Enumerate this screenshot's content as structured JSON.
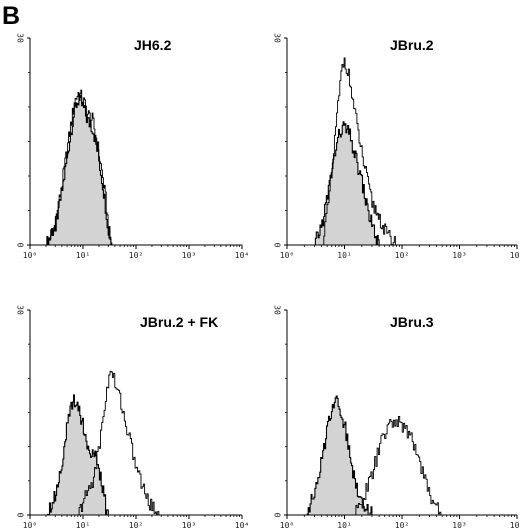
{
  "figure_label": "B",
  "colors": {
    "control_fill": "#d3d3d3",
    "outline": "#000000",
    "axis": "#000000"
  },
  "chart_data": [
    {
      "type": "area",
      "title": "JH6.2",
      "x_scale": "log",
      "xlim": [
        1,
        10000
      ],
      "ylim": [
        0,
        30
      ],
      "x_tick_labels": [
        "10⁰",
        "10¹",
        "10²",
        "10³",
        "10⁴"
      ],
      "y_tick_labels": [
        "0",
        "30"
      ],
      "grid": false,
      "series": [
        {
          "style": "filled-grey",
          "x": [
            2,
            3,
            4,
            5,
            6,
            7,
            8,
            10,
            12,
            15,
            18,
            20,
            23,
            27,
            30,
            35
          ],
          "y": [
            0,
            3,
            8,
            13,
            17,
            20,
            21,
            20,
            18,
            17,
            14,
            12,
            9,
            5,
            2,
            0
          ]
        },
        {
          "style": "outline",
          "x": [
            2,
            3,
            4,
            5,
            6,
            7,
            8,
            10,
            12,
            15,
            18,
            20,
            23,
            27,
            30,
            35
          ],
          "y": [
            0,
            3,
            9,
            14,
            18,
            21,
            22,
            21,
            19,
            18,
            15,
            13,
            10,
            6,
            2,
            0
          ]
        }
      ]
    },
    {
      "type": "area",
      "title": "JBru.2",
      "x_scale": "log",
      "xlim": [
        1,
        10000
      ],
      "ylim": [
        0,
        30
      ],
      "x_tick_labels": [
        "10⁰",
        "10¹",
        "10²",
        "10³",
        "10⁴"
      ],
      "y_tick_labels": [
        "0",
        "30"
      ],
      "grid": false,
      "series": [
        {
          "style": "filled-grey",
          "x": [
            3,
            4,
            5,
            6,
            7,
            8,
            9,
            10,
            12,
            15,
            20,
            25,
            30,
            35,
            40
          ],
          "y": [
            0,
            3,
            7,
            11,
            14,
            16,
            17,
            17,
            16,
            13,
            9,
            5,
            3,
            1,
            0
          ]
        },
        {
          "style": "outline",
          "x": [
            4,
            5,
            6,
            7,
            8,
            9,
            10,
            12,
            15,
            20,
            25,
            30,
            40,
            50,
            60,
            80
          ],
          "y": [
            0,
            5,
            11,
            17,
            22,
            26,
            27,
            24,
            19,
            13,
            9,
            6,
            4,
            2,
            1,
            0
          ]
        }
      ]
    },
    {
      "type": "area",
      "title": "JBru.2 + FK",
      "x_scale": "log",
      "xlim": [
        1,
        10000
      ],
      "ylim": [
        0,
        30
      ],
      "x_tick_labels": [
        "10⁰",
        "10¹",
        "10²",
        "10³",
        "10⁴"
      ],
      "y_tick_labels": [
        "0",
        "30"
      ],
      "grid": false,
      "series": [
        {
          "style": "filled-grey",
          "x": [
            2,
            3,
            4,
            5,
            6,
            7,
            8,
            10,
            12,
            15,
            18,
            20,
            23,
            27,
            30
          ],
          "y": [
            0,
            3,
            8,
            13,
            16,
            17,
            16,
            13,
            10,
            9,
            8,
            6,
            4,
            1,
            0
          ]
        },
        {
          "style": "outline",
          "x": [
            8,
            10,
            15,
            20,
            25,
            30,
            35,
            40,
            50,
            60,
            70,
            80,
            100,
            120,
            150,
            200,
            250,
            300
          ],
          "y": [
            0,
            2,
            5,
            10,
            16,
            20,
            21,
            19,
            17,
            14,
            12,
            10,
            7,
            5,
            3,
            1,
            0.5,
            0
          ]
        }
      ]
    },
    {
      "type": "area",
      "title": "JBru.3",
      "x_scale": "log",
      "xlim": [
        1,
        10000
      ],
      "ylim": [
        0,
        30
      ],
      "x_tick_labels": [
        "10⁰",
        "10¹",
        "10²",
        "10³",
        "10⁴"
      ],
      "y_tick_labels": [
        "0",
        "30"
      ],
      "grid": false,
      "series": [
        {
          "style": "filled-grey",
          "x": [
            2,
            3,
            4,
            5,
            6,
            7,
            8,
            10,
            12,
            15,
            20,
            25,
            30
          ],
          "y": [
            0,
            3,
            8,
            13,
            16,
            17,
            16,
            13,
            9,
            5,
            2,
            1,
            0
          ]
        },
        {
          "style": "outline",
          "x": [
            15,
            20,
            30,
            40,
            50,
            60,
            80,
            100,
            120,
            150,
            200,
            250,
            300,
            400,
            500
          ],
          "y": [
            0,
            2,
            6,
            10,
            12,
            13,
            14,
            13,
            12,
            11,
            8,
            5,
            3,
            1,
            0
          ]
        }
      ]
    }
  ]
}
